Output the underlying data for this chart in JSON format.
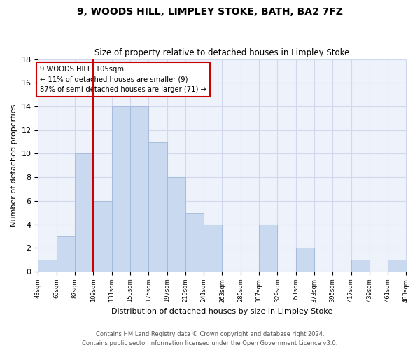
{
  "title1": "9, WOODS HILL, LIMPLEY STOKE, BATH, BA2 7FZ",
  "title2": "Size of property relative to detached houses in Limpley Stoke",
  "xlabel": "Distribution of detached houses by size in Limpley Stoke",
  "ylabel": "Number of detached properties",
  "bar_values": [
    1,
    3,
    10,
    6,
    14,
    14,
    11,
    8,
    5,
    4,
    0,
    0,
    4,
    0,
    2,
    0,
    0,
    1,
    0,
    1
  ],
  "bar_labels": [
    "43sqm",
    "65sqm",
    "87sqm",
    "109sqm",
    "131sqm",
    "153sqm",
    "175sqm",
    "197sqm",
    "219sqm",
    "241sqm",
    "263sqm",
    "285sqm",
    "307sqm",
    "329sqm",
    "351sqm",
    "373sqm",
    "395sqm",
    "417sqm",
    "439sqm",
    "461sqm",
    "483sqm"
  ],
  "bar_color": "#c9d9f0",
  "bar_edge_color": "#a0b8d8",
  "grid_color": "#d0d8ee",
  "background_color": "#eef2fa",
  "annotation_box_color": "#cc0000",
  "vline_color": "#cc0000",
  "annotation_text": "9 WOODS HILL: 105sqm\n← 11% of detached houses are smaller (9)\n87% of semi-detached houses are larger (71) →",
  "footer1": "Contains HM Land Registry data © Crown copyright and database right 2024.",
  "footer2": "Contains public sector information licensed under the Open Government Licence v3.0.",
  "ylim": [
    0,
    18
  ],
  "yticks": [
    0,
    2,
    4,
    6,
    8,
    10,
    12,
    14,
    16,
    18
  ]
}
